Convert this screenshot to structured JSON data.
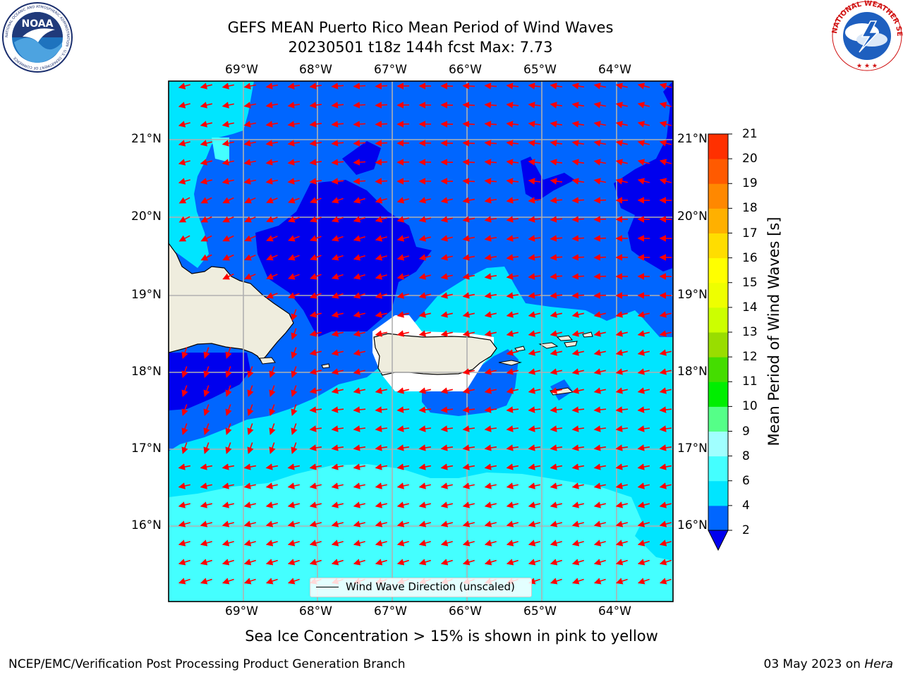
{
  "title": {
    "line1": "GEFS MEAN Puerto Rico Mean Period of Wind Waves",
    "line2": "20230501 t18z 144h fcst   Max: 7.73"
  },
  "map": {
    "lon_labels": [
      "69°W",
      "68°W",
      "67°W",
      "66°W",
      "65°W",
      "64°W"
    ],
    "lat_labels": [
      "21°N",
      "20°N",
      "19°N",
      "18°N",
      "17°N",
      "16°N"
    ],
    "land_color": "#efedde",
    "grid_color": "#b0b0b0",
    "arrow_color": "#ff0000"
  },
  "legend": {
    "label": "Wind Wave Direction (unscaled)"
  },
  "colorbar": {
    "title": "Mean Period of Wind Waves [s]",
    "ticks": [
      "2",
      "4",
      "6",
      "8",
      "9",
      "10",
      "11",
      "12",
      "13",
      "14",
      "15",
      "16",
      "17",
      "18",
      "19",
      "20",
      "21"
    ],
    "colors": [
      "#0066ff",
      "#00e5ff",
      "#44ffff",
      "#a0ffff",
      "#55ff88",
      "#00ee00",
      "#44dd00",
      "#99dd00",
      "#ccff00",
      "#eeff00",
      "#ffff00",
      "#ffdd00",
      "#ffb000",
      "#ff8800",
      "#ff5a00",
      "#ff3000",
      "#ff0000"
    ],
    "under_color": "#0000ee"
  },
  "note": "Sea Ice Concentration > 15% is shown in pink to yellow",
  "footer": {
    "left": "NCEP/EMC/Verification Post Processing Product Generation Branch",
    "right_date": "03 May 2023 on ",
    "right_host": "Hera"
  },
  "logos": {
    "noaa_text": "NOAA",
    "noaa_ring": "NATIONAL OCEANIC AND ATMOSPHERIC ADMINISTRATION · U.S. DEPARTMENT OF COMMERCE",
    "nws_ring": "NATIONAL WEATHER SERVICE"
  }
}
